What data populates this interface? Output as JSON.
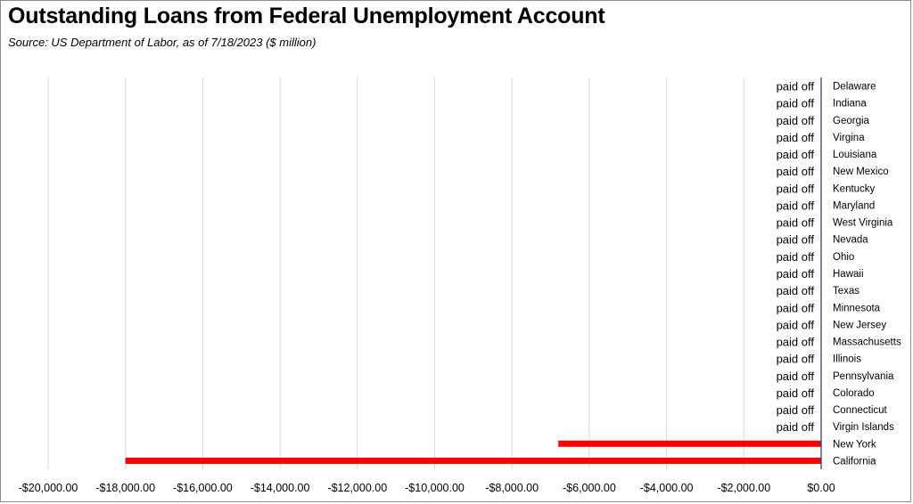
{
  "title": "Outstanding Loans from Federal Unemployment Account",
  "subtitle": "Source:  US Department of Labor, as of 7/18/2023  ($ million)",
  "colors": {
    "bar": "#ff0000",
    "grid": "#d9d9d9",
    "axis": "#1f3864",
    "text": "#000000"
  },
  "chart_data": {
    "type": "bar",
    "orientation": "horizontal",
    "categories": [
      "Delaware",
      "Indiana",
      "Georgia",
      "Virgina",
      "Louisiana",
      "New Mexico",
      "Kentucky",
      "Maryland",
      "West Virginia",
      "Nevada",
      "Ohio",
      "Hawaii",
      "Texas",
      "Minnesota",
      "New Jersey",
      "Massachusetts",
      "Illinois",
      "Pennsylvania",
      "Colorado",
      "Connecticut",
      "Virgin Islands",
      "New York",
      "California"
    ],
    "values": [
      0,
      0,
      0,
      0,
      0,
      0,
      0,
      0,
      0,
      0,
      0,
      0,
      0,
      0,
      0,
      0,
      0,
      0,
      0,
      0,
      0,
      -6800,
      -18000
    ],
    "data_labels": [
      "paid off",
      "paid off",
      "paid off",
      "paid off",
      "paid off",
      "paid off",
      "paid off",
      "paid off",
      "paid off",
      "paid off",
      "paid off",
      "paid off",
      "paid off",
      "paid off",
      "paid off",
      "paid off",
      "paid off",
      "paid off",
      "paid off",
      "paid off",
      "paid off",
      "",
      ""
    ],
    "xlim": [
      -20000,
      0
    ],
    "xticks": [
      -20000,
      -18000,
      -16000,
      -14000,
      -12000,
      -10000,
      -8000,
      -6000,
      -4000,
      -2000,
      0
    ],
    "xtick_labels": [
      "-$20,000.00",
      "-$18,000.00",
      "-$16,000.00",
      "-$14,000.00",
      "-$12,000.00",
      "-$10,000.00",
      "-$8,000.00",
      "-$6,000.00",
      "-$4,000.00",
      "-$2,000.00",
      "$0.00"
    ],
    "xlabel": "",
    "ylabel": "",
    "grid": "vertical",
    "legend": "none"
  }
}
